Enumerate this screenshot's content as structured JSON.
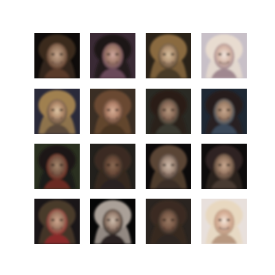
{
  "figure": {
    "background_color": "#ffffff",
    "rows": 4,
    "cols": 4
  },
  "tiles": [
    {
      "bg": "#0e0b0a",
      "skin": "#9a7a62",
      "hair": "#3b2a1e",
      "light": "#c8a890",
      "accent": "#5a3a2a"
    },
    {
      "bg": "#3a2a35",
      "skin": "#a07a68",
      "hair": "#1e1614",
      "light": "#d0a8a0",
      "accent": "#6a4a5a"
    },
    {
      "bg": "#2a2218",
      "skin": "#b09070",
      "hair": "#8a6a40",
      "light": "#d8c0a0",
      "accent": "#4a3a28"
    },
    {
      "bg": "#c8c0c8",
      "skin": "#d8b8a8",
      "hair": "#e8dcd0",
      "light": "#f0e4dc",
      "accent": "#a08890"
    },
    {
      "bg": "#2a2a3a",
      "skin": "#b08868",
      "hair": "#a08050",
      "light": "#e0c8a8",
      "accent": "#5a4a3a"
    },
    {
      "bg": "#3a2e24",
      "skin": "#b08068",
      "hair": "#6a4a30",
      "light": "#d8b098",
      "accent": "#4a3424"
    },
    {
      "bg": "#2a2a24",
      "skin": "#8a6a58",
      "hair": "#2a1e18",
      "light": "#b89a80",
      "accent": "#3a3a30"
    },
    {
      "bg": "#1e2834",
      "skin": "#a08068",
      "hair": "#281e1c",
      "light": "#c8a890",
      "accent": "#3a4a5a"
    },
    {
      "bg": "#2a3020",
      "skin": "#7a5a48",
      "hair": "#1a1614",
      "light": "#a88a70",
      "accent": "#6a2a20"
    },
    {
      "bg": "#22201c",
      "skin": "#6a4a38",
      "hair": "#3a2a20",
      "light": "#8a6a54",
      "accent": "#2a2420"
    },
    {
      "bg": "#0c0a0a",
      "skin": "#a08878",
      "hair": "#5a4434",
      "light": "#d0bcac",
      "accent": "#3a2e28"
    },
    {
      "bg": "#0e0c0c",
      "skin": "#9a7a64",
      "hair": "#2e2420",
      "light": "#c8a890",
      "accent": "#4a3a30"
    },
    {
      "bg": "#1a1618",
      "skin": "#a07a64",
      "hair": "#4a3a2c",
      "light": "#d0a890",
      "accent": "#8a2a2a"
    },
    {
      "bg": "#060606",
      "skin": "#9a8070",
      "hair": "#aaa098",
      "light": "#d0c0b0",
      "accent": "#2a2420"
    },
    {
      "bg": "#2a2420",
      "skin": "#7a5a48",
      "hair": "#3a2a20",
      "light": "#9a7a64",
      "accent": "#2e2620"
    },
    {
      "bg": "#e8e0dc",
      "skin": "#d8b098",
      "hair": "#e8d8c0",
      "light": "#f4e8dc",
      "accent": "#b89880"
    }
  ]
}
